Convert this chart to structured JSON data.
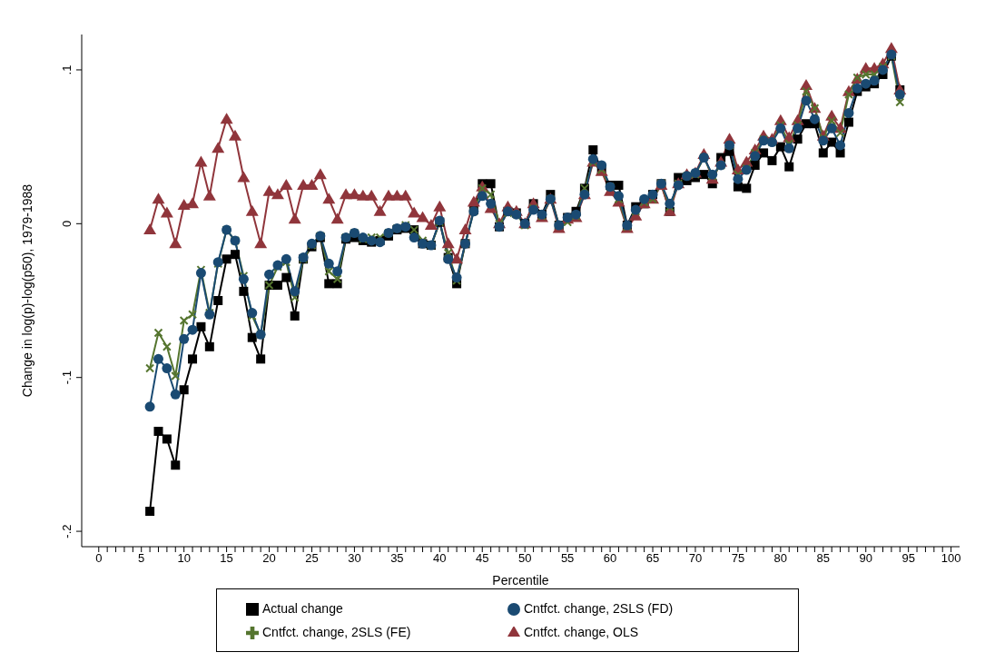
{
  "chart_data": {
    "type": "line",
    "xlabel": "Percentile",
    "ylabel": "Change in log(p)-log(p50), 1979-1988",
    "x": [
      6,
      7,
      8,
      9,
      10,
      11,
      12,
      13,
      14,
      15,
      16,
      17,
      18,
      19,
      20,
      21,
      22,
      23,
      24,
      25,
      26,
      27,
      28,
      29,
      30,
      31,
      32,
      33,
      34,
      35,
      36,
      37,
      38,
      39,
      40,
      41,
      42,
      43,
      44,
      45,
      46,
      47,
      48,
      49,
      50,
      51,
      52,
      53,
      54,
      55,
      56,
      57,
      58,
      59,
      60,
      61,
      62,
      63,
      64,
      65,
      66,
      67,
      68,
      69,
      70,
      71,
      72,
      73,
      74,
      75,
      76,
      77,
      78,
      79,
      80,
      81,
      82,
      83,
      84,
      85,
      86,
      87,
      88,
      89,
      90,
      91,
      92,
      93,
      94
    ],
    "series": [
      {
        "name": "Actual change",
        "color": "#000000",
        "marker": "square",
        "values": [
          -0.187,
          -0.135,
          -0.14,
          -0.157,
          -0.108,
          -0.088,
          -0.067,
          -0.08,
          -0.05,
          -0.023,
          -0.02,
          -0.044,
          -0.074,
          -0.088,
          -0.04,
          -0.04,
          -0.035,
          -0.06,
          -0.023,
          -0.015,
          -0.009,
          -0.039,
          -0.039,
          -0.01,
          -0.009,
          -0.011,
          -0.012,
          -0.011,
          -0.008,
          -0.004,
          -0.003,
          -0.004,
          -0.013,
          -0.014,
          0.001,
          -0.022,
          -0.039,
          -0.013,
          0.009,
          0.026,
          0.026,
          -0.002,
          0.008,
          0.007,
          0.0,
          0.013,
          0.006,
          0.019,
          -0.001,
          0.004,
          0.008,
          0.023,
          0.048,
          0.035,
          0.025,
          0.025,
          -0.001,
          0.011,
          0.013,
          0.019,
          0.026,
          0.008,
          0.03,
          0.028,
          0.03,
          0.032,
          0.026,
          0.043,
          0.047,
          0.024,
          0.023,
          0.038,
          0.046,
          0.041,
          0.05,
          0.037,
          0.055,
          0.065,
          0.065,
          0.046,
          0.053,
          0.046,
          0.066,
          0.086,
          0.089,
          0.091,
          0.097,
          0.109,
          0.087
        ]
      },
      {
        "name": "Cntfct. change, OLS",
        "color": "#90353b",
        "marker": "triangle",
        "values": [
          -0.004,
          0.016,
          0.007,
          -0.013,
          0.012,
          0.013,
          0.04,
          0.018,
          0.049,
          0.068,
          0.057,
          0.03,
          0.008,
          -0.013,
          0.021,
          0.019,
          0.025,
          0.003,
          0.025,
          0.025,
          0.032,
          0.016,
          0.003,
          0.019,
          0.019,
          0.018,
          0.018,
          0.008,
          0.018,
          0.018,
          0.018,
          0.007,
          0.004,
          -0.001,
          0.011,
          -0.013,
          -0.023,
          -0.004,
          0.014,
          0.024,
          0.01,
          0.0,
          0.011,
          0.008,
          0.0,
          0.013,
          0.004,
          0.016,
          -0.003,
          0.003,
          0.004,
          0.019,
          0.04,
          0.034,
          0.021,
          0.014,
          -0.003,
          0.005,
          0.013,
          0.016,
          0.025,
          0.008,
          0.026,
          0.032,
          0.033,
          0.045,
          0.029,
          0.04,
          0.055,
          0.035,
          0.04,
          0.048,
          0.057,
          0.055,
          0.067,
          0.056,
          0.067,
          0.09,
          0.075,
          0.057,
          0.07,
          0.062,
          0.086,
          0.094,
          0.101,
          0.101,
          0.104,
          0.114,
          0.087
        ]
      },
      {
        "name": "Cntfct. change, 2SLS (FE)",
        "color": "#55752f",
        "marker": "cross",
        "values": [
          -0.094,
          -0.071,
          -0.08,
          -0.099,
          -0.063,
          -0.059,
          -0.03,
          -0.058,
          -0.026,
          -0.004,
          -0.011,
          -0.034,
          -0.06,
          -0.072,
          -0.04,
          -0.028,
          -0.025,
          -0.048,
          -0.023,
          -0.014,
          -0.008,
          -0.031,
          -0.036,
          -0.009,
          -0.006,
          -0.01,
          -0.009,
          -0.009,
          -0.006,
          -0.003,
          -0.001,
          -0.004,
          -0.011,
          -0.014,
          0.001,
          -0.019,
          -0.037,
          -0.013,
          0.008,
          0.023,
          0.019,
          0.0,
          0.007,
          0.006,
          -0.001,
          0.01,
          0.005,
          0.016,
          -0.001,
          0.001,
          0.005,
          0.023,
          0.04,
          0.035,
          0.024,
          0.016,
          -0.002,
          0.008,
          0.014,
          0.016,
          0.026,
          0.011,
          0.026,
          0.031,
          0.032,
          0.043,
          0.031,
          0.038,
          0.051,
          0.032,
          0.036,
          0.046,
          0.055,
          0.053,
          0.064,
          0.052,
          0.064,
          0.086,
          0.075,
          0.056,
          0.067,
          0.059,
          0.084,
          0.095,
          0.097,
          0.097,
          0.102,
          0.109,
          0.079
        ]
      },
      {
        "name": "Cntfct. change, 2SLS (FD)",
        "color": "#1a4a72",
        "marker": "circle",
        "values": [
          -0.119,
          -0.088,
          -0.094,
          -0.111,
          -0.075,
          -0.069,
          -0.032,
          -0.059,
          -0.025,
          -0.004,
          -0.011,
          -0.036,
          -0.058,
          -0.072,
          -0.033,
          -0.027,
          -0.023,
          -0.044,
          -0.022,
          -0.013,
          -0.008,
          -0.026,
          -0.031,
          -0.009,
          -0.006,
          -0.009,
          -0.011,
          -0.012,
          -0.006,
          -0.003,
          -0.002,
          -0.009,
          -0.013,
          -0.014,
          0.002,
          -0.023,
          -0.035,
          -0.013,
          0.008,
          0.018,
          0.013,
          -0.002,
          0.008,
          0.006,
          0.0,
          0.009,
          0.006,
          0.016,
          -0.001,
          0.004,
          0.006,
          0.019,
          0.042,
          0.038,
          0.024,
          0.018,
          -0.001,
          0.009,
          0.016,
          0.019,
          0.026,
          0.013,
          0.025,
          0.031,
          0.033,
          0.043,
          0.032,
          0.038,
          0.051,
          0.029,
          0.035,
          0.044,
          0.054,
          0.053,
          0.062,
          0.049,
          0.062,
          0.08,
          0.068,
          0.054,
          0.062,
          0.051,
          0.072,
          0.088,
          0.091,
          0.093,
          0.1,
          0.11,
          0.084
        ]
      }
    ],
    "xlim": [
      -2,
      101
    ],
    "xticks": [
      0,
      {
        "value": 1,
        "label": null
      },
      {
        "value": 2,
        "label": null
      },
      {
        "value": 3,
        "label": null
      },
      {
        "value": 4,
        "label": null
      },
      5,
      {
        "value": 6,
        "label": null
      },
      {
        "value": 7,
        "label": null
      },
      {
        "value": 8,
        "label": null
      },
      {
        "value": 9,
        "label": null
      },
      10,
      {
        "value": 11,
        "label": null
      },
      {
        "value": 12,
        "label": null
      },
      {
        "value": 13,
        "label": null
      },
      {
        "value": 14,
        "label": null
      },
      15,
      {
        "value": 16,
        "label": null
      },
      {
        "value": 17,
        "label": null
      },
      {
        "value": 18,
        "label": null
      },
      {
        "value": 19,
        "label": null
      },
      20,
      {
        "value": 21,
        "label": null
      },
      {
        "value": 22,
        "label": null
      },
      {
        "value": 23,
        "label": null
      },
      {
        "value": 24,
        "label": null
      },
      25,
      {
        "value": 26,
        "label": null
      },
      {
        "value": 27,
        "label": null
      },
      {
        "value": 28,
        "label": null
      },
      {
        "value": 29,
        "label": null
      },
      30,
      {
        "value": 31,
        "label": null
      },
      {
        "value": 32,
        "label": null
      },
      {
        "value": 33,
        "label": null
      },
      {
        "value": 34,
        "label": null
      },
      35,
      {
        "value": 36,
        "label": null
      },
      {
        "value": 37,
        "label": null
      },
      {
        "value": 38,
        "label": null
      },
      {
        "value": 39,
        "label": null
      },
      40,
      {
        "value": 41,
        "label": null
      },
      {
        "value": 42,
        "label": null
      },
      {
        "value": 43,
        "label": null
      },
      {
        "value": 44,
        "label": null
      },
      45,
      {
        "value": 46,
        "label": null
      },
      {
        "value": 47,
        "label": null
      },
      {
        "value": 48,
        "label": null
      },
      {
        "value": 49,
        "label": null
      },
      50,
      {
        "value": 51,
        "label": null
      },
      {
        "value": 52,
        "label": null
      },
      {
        "value": 53,
        "label": null
      },
      {
        "value": 54,
        "label": null
      },
      55,
      {
        "value": 56,
        "label": null
      },
      {
        "value": 57,
        "label": null
      },
      {
        "value": 58,
        "label": null
      },
      {
        "value": 59,
        "label": null
      },
      60,
      {
        "value": 61,
        "label": null
      },
      {
        "value": 62,
        "label": null
      },
      {
        "value": 63,
        "label": null
      },
      {
        "value": 64,
        "label": null
      },
      65,
      {
        "value": 66,
        "label": null
      },
      {
        "value": 67,
        "label": null
      },
      {
        "value": 68,
        "label": null
      },
      {
        "value": 69,
        "label": null
      },
      70,
      {
        "value": 71,
        "label": null
      },
      {
        "value": 72,
        "label": null
      },
      {
        "value": 73,
        "label": null
      },
      {
        "value": 74,
        "label": null
      },
      75,
      {
        "value": 76,
        "label": null
      },
      {
        "value": 77,
        "label": null
      },
      {
        "value": 78,
        "label": null
      },
      {
        "value": 79,
        "label": null
      },
      80,
      {
        "value": 81,
        "label": null
      },
      {
        "value": 82,
        "label": null
      },
      {
        "value": 83,
        "label": null
      },
      {
        "value": 84,
        "label": null
      },
      85,
      {
        "value": 86,
        "label": null
      },
      {
        "value": 87,
        "label": null
      },
      {
        "value": 88,
        "label": null
      },
      {
        "value": 89,
        "label": null
      },
      90,
      {
        "value": 91,
        "label": null
      },
      {
        "value": 92,
        "label": null
      },
      {
        "value": 93,
        "label": null
      },
      {
        "value": 94,
        "label": null
      },
      95,
      {
        "value": 96,
        "label": null
      },
      {
        "value": 97,
        "label": null
      },
      {
        "value": 98,
        "label": null
      },
      {
        "value": 99,
        "label": null
      },
      100
    ],
    "ylim": [
      -0.21,
      0.123
    ],
    "yticks": [
      {
        "value": -0.2,
        "label": "-.2"
      },
      {
        "value": -0.1,
        "label": "-.1"
      },
      0,
      {
        "value": 0.1,
        "label": ".1"
      }
    ],
    "grid": false,
    "legend": "bottom"
  }
}
